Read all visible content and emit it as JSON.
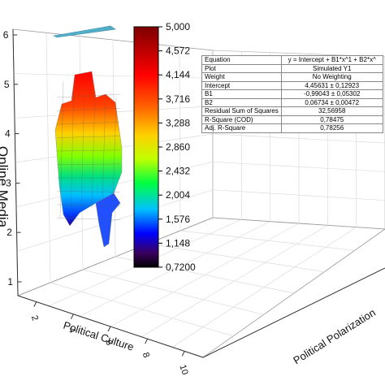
{
  "chart_data": {
    "type": "surface",
    "x_axis": {
      "label": "Political Culture",
      "ticks": [
        "2",
        "4",
        "6",
        "8",
        "10"
      ]
    },
    "y_axis": {
      "label": "Political Polarization",
      "ticks": []
    },
    "z_axis": {
      "label": "Online Media",
      "ticks": [
        "1",
        "2",
        "3",
        "4",
        "5",
        "6"
      ],
      "zlim": [
        0.72,
        6
      ]
    },
    "colorbar": {
      "ticks": [
        "5,000",
        "4,572",
        "4,144",
        "3,716",
        "3,288",
        "2,860",
        "2,432",
        "2,004",
        "1,576",
        "1,148",
        "0,7200"
      ],
      "range": [
        0.72,
        5.0
      ],
      "colors": [
        "#000000",
        "#3a0060",
        "#0000ff",
        "#00c0ff",
        "#00ff40",
        "#c0ff00",
        "#ffd000",
        "#ff6000",
        "#ff0000",
        "#b00000",
        "#800000"
      ]
    },
    "grid": true,
    "surface": {
      "value_range": [
        0.72,
        5.0
      ]
    },
    "fit_table": {
      "rows": [
        {
          "key": "Equation",
          "value": "y = Intercept + B1*x^1 + B2*x^"
        },
        {
          "key": "Plot",
          "value": "Simulated Y1"
        },
        {
          "key": "Weight",
          "value": "No Weighting"
        },
        {
          "key": "Intercept",
          "value": "4,45631 ± 0,12923"
        },
        {
          "key": "B1",
          "value": "-0,99043 ± 0,05302"
        },
        {
          "key": "B2",
          "value": "0,06734 ± 0,00472"
        },
        {
          "key": "Residual Sum of Squares",
          "value": "32,56958"
        },
        {
          "key": "R-Square (COD)",
          "value": "0,78475"
        },
        {
          "key": "Adj. R-Square",
          "value": "0,78256"
        }
      ]
    }
  }
}
